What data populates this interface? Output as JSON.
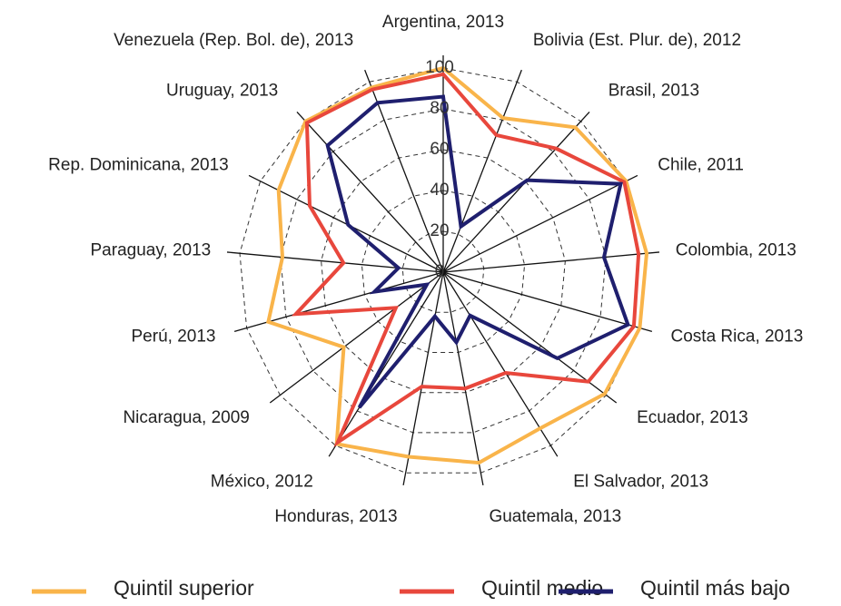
{
  "chart_data": {
    "type": "radar",
    "categories": [
      "Argentina, 2013",
      "Bolivia (Est. Plur. de), 2012",
      "Brasil, 2013",
      "Chile, 2011",
      "Colombia, 2013",
      "Costa Rica, 2013",
      "Ecuador, 2013",
      "El Salvador, 2013",
      "Guatemala, 2013",
      "Honduras, 2013",
      "México, 2012",
      "Nicaragua, 2009",
      "Perú, 2013",
      "Paraguay, 2013",
      "Rep. Dominicana, 2013",
      "Uruguay, 2013",
      "Venezuela (Rep. Bol. de), 2013"
    ],
    "series": [
      {
        "name": "Quintil superior",
        "color": "#f9b44a",
        "values": [
          100,
          81,
          96,
          100,
          100,
          100,
          99,
          90,
          95,
          92,
          99,
          61,
          89,
          79,
          90,
          100,
          97
        ]
      },
      {
        "name": "Quintil medio",
        "color": "#e8473c",
        "values": [
          97,
          72,
          82,
          99,
          96,
          97,
          89,
          58,
          58,
          57,
          98,
          29,
          75,
          49,
          73,
          99,
          96
        ]
      },
      {
        "name": "Quintil más bajo",
        "color": "#1f1f6e",
        "values": [
          86,
          24,
          61,
          97,
          79,
          94,
          70,
          25,
          35,
          22,
          78,
          10,
          35,
          22,
          52,
          84,
          89
        ]
      }
    ],
    "ylim": [
      0,
      100
    ],
    "yticks": [
      0,
      20,
      40,
      60,
      80,
      100
    ],
    "grid": true,
    "legend": "bottom"
  }
}
